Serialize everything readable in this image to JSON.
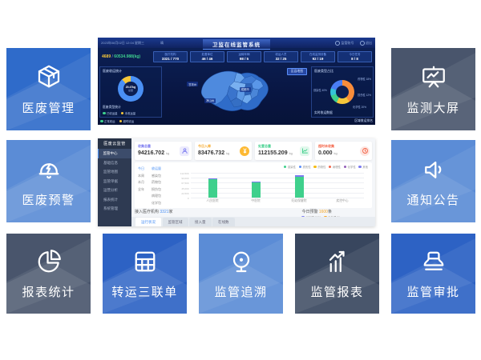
{
  "colors": {
    "tile_blue": "#2f6bca",
    "tile_slate": "#49556c",
    "tile_lightblue": "#5b8cd6",
    "tile_darkslate": "#38465e",
    "accent_blue": "#4a90f5",
    "green": "#3fd08c",
    "yellow": "#f6c73a",
    "orange": "#f98c3a",
    "red": "#f4664a",
    "purple": "#7b7bf0"
  },
  "tiles": [
    {
      "label": "医废管理"
    },
    {
      "label": "监测大屏"
    },
    {
      "label": "医废预警"
    },
    {
      "label": "通知公告"
    },
    {
      "label": "报表统计"
    },
    {
      "label": "转运三联单"
    },
    {
      "label": "监管追溯"
    },
    {
      "label": "监管报表"
    },
    {
      "label": "监管审批"
    }
  ],
  "big_screen": {
    "datetime": "2023年08月02日 12:04 星期三",
    "weather": "晴",
    "title": "卫监在线监管系统",
    "user": "监管账号",
    "logout": "退出",
    "summary": {
      "count": "4689",
      "sep": "/",
      "weight": "60534.988(kg)"
    },
    "stat_boxes": [
      {
        "label": "医疗机构",
        "value": "3321 / 770"
      },
      {
        "label": "处置单位",
        "value": "46 / 46"
      },
      {
        "label": "运输车辆",
        "value": "98 / 5"
      },
      {
        "label": "收运人员",
        "value": "32 / 25"
      },
      {
        "label": "在线监测设备",
        "value": "92 / 19"
      },
      {
        "label": "今日任务",
        "value": "8 / 8"
      }
    ],
    "left_panel": {
      "title": "医废收运统计",
      "donut": {
        "segments": [
          {
            "label": "已收运量",
            "pct": 88,
            "color": "#4a90f5"
          },
          {
            "label": "未收运量",
            "pct": 12,
            "color": "#f6c73a"
          }
        ],
        "center_value": "20.47kg",
        "center_label": "总量"
      },
      "sub_title": "医废类型统计",
      "legend": [
        {
          "label": "已收运量",
          "color": "#3ecf8e"
        },
        {
          "label": "未收运量",
          "color": "#f6c73a"
        }
      ]
    },
    "map": {
      "button": "区县地图",
      "labels": [
        "甘孜州",
        "成都市",
        "凉山州"
      ]
    },
    "right_panel": {
      "title": "医废类型占比",
      "donut": {
        "segments": [
          {
            "label": "感染性",
            "pct": 40,
            "color": "#f98c3a"
          },
          {
            "label": "药物性",
            "pct": 18,
            "color": "#f6c73a"
          },
          {
            "label": "损伤性",
            "pct": 12,
            "color": "#3ecf8e"
          },
          {
            "label": "病理性",
            "pct": 10,
            "color": "#35c3d8"
          },
          {
            "label": "化学性",
            "pct": 20,
            "color": "#4a7df5"
          }
        ]
      },
      "callouts": [
        "感染性 40%",
        "药物性 18%",
        "损伤性 12%",
        "化学性 20%"
      ],
      "footer": "实时收运数据"
    },
    "footer_legend": [
      {
        "label": "正常收运",
        "color": "#3ecf8e"
      },
      {
        "label": "超时收运",
        "color": "#f6c73a"
      }
    ],
    "footer_right": "区域收运排名"
  },
  "console": {
    "sidebar": {
      "logo": "医废云监管",
      "items": [
        {
          "label": "监管中心",
          "active": true
        },
        {
          "label": "基础信息",
          "active": false
        },
        {
          "label": "监管地图",
          "active": false
        },
        {
          "label": "监管单据",
          "active": false
        },
        {
          "label": "运营分析",
          "active": false
        },
        {
          "label": "报表统计",
          "active": false
        },
        {
          "label": "系统管理",
          "active": false
        }
      ]
    },
    "cards": [
      {
        "label": "收集总量",
        "value": "94216.702",
        "unit": "kg",
        "color": "#7b7bf0"
      },
      {
        "label": "今日入库",
        "value": "83476.732",
        "unit": "kg",
        "color": "#f6a623"
      },
      {
        "label": "处置总量",
        "value": "112155.209",
        "unit": "kg",
        "color": "#3fcf8c"
      },
      {
        "label": "超时未收集",
        "value": "0.000",
        "unit": "kg",
        "color": "#f4664a"
      }
    ],
    "chart": {
      "type": "bar",
      "period_tabs": [
        "今日",
        "本周",
        "本月",
        "全年"
      ],
      "category_list": [
        "收运量",
        "感染包",
        "药物包",
        "损伤包",
        "病理包",
        "化学包"
      ],
      "legend": [
        {
          "label": "感染性",
          "color": "#3fd08c"
        },
        {
          "label": "损伤性",
          "color": "#5b8ff9"
        },
        {
          "label": "药物性",
          "color": "#f6bd16"
        },
        {
          "label": "病理性",
          "color": "#f4664a"
        },
        {
          "label": "化学性",
          "color": "#945fb9"
        },
        {
          "label": "其他",
          "color": "#7b7bf0"
        }
      ],
      "y_ticks": [
        "112,500",
        "90,000",
        "67,500",
        "45,000",
        "22,500",
        "0"
      ],
      "x_labels": [
        "人民医院",
        "中医院",
        "妇幼保健院",
        "疾控中心"
      ],
      "bars": [
        {
          "green": 74,
          "purple": 5
        },
        {
          "green": 62,
          "purple": 4
        },
        {
          "green": 84,
          "purple": 5
        },
        {
          "green": 0,
          "purple": 0
        }
      ]
    },
    "footer": {
      "left_label": "接入医疗机构",
      "left_value": "3321",
      "left_unit": "家",
      "right_label": "今日预警",
      "right_value": "1600",
      "right_unit": "条",
      "legend": [
        {
          "label": "已处理 1520",
          "color": "#7b7bf0"
        },
        {
          "label": "未处理 80",
          "color": "#f6a623"
        }
      ]
    },
    "tabs": [
      {
        "label": "运行状况",
        "active": true
      },
      {
        "label": "监管区域",
        "active": false
      },
      {
        "label": "接入量",
        "active": false
      },
      {
        "label": "在线数",
        "active": false
      }
    ]
  }
}
